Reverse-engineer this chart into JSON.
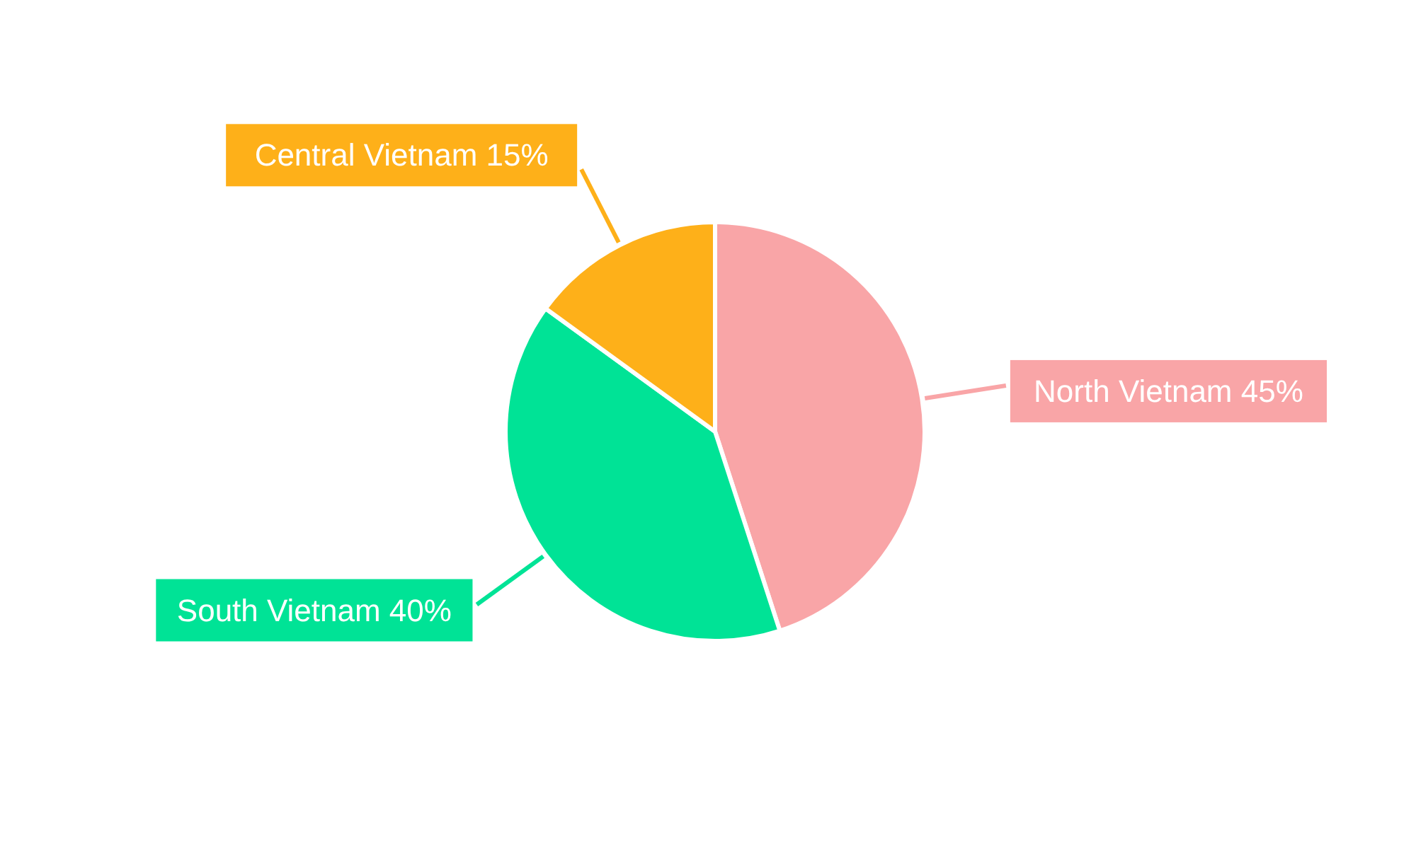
{
  "chart_data": {
    "type": "pie",
    "categories": [
      "North Vietnam",
      "South Vietnam",
      "Central Vietnam"
    ],
    "values": [
      45,
      40,
      15
    ],
    "colors": [
      "#f9a5a7",
      "#00e396",
      "#feb019"
    ],
    "value_labels": [
      "45%",
      "40%",
      "15%"
    ]
  }
}
